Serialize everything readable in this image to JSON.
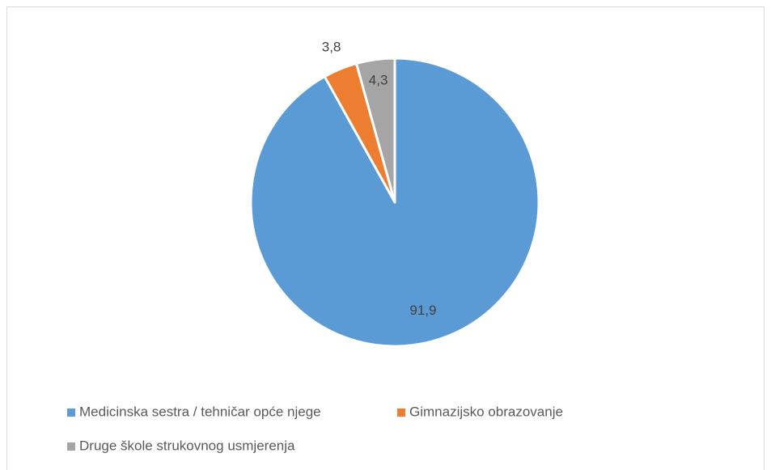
{
  "chart_data": {
    "type": "pie",
    "categories": [
      "Medicinska sestra / tehničar opće njege",
      "Gimnazijsko obrazovanje",
      "Druge škole strukovnog usmjerenja"
    ],
    "values": [
      91.9,
      3.8,
      4.3
    ],
    "value_labels": [
      "91,9",
      "3,8",
      "4,3"
    ],
    "colors": [
      "#5b9bd5",
      "#ed7d31",
      "#a5a5a5"
    ],
    "legend": "bottom"
  }
}
